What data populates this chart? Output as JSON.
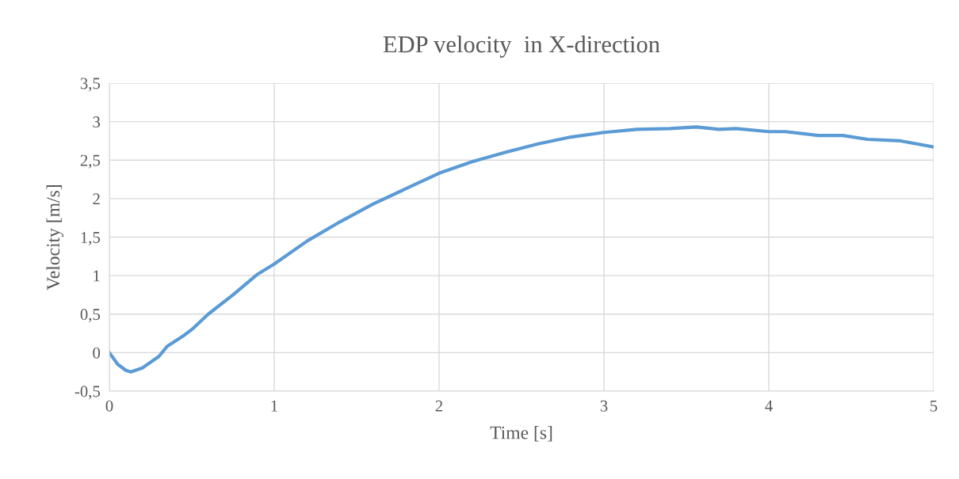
{
  "chart_data": {
    "type": "line",
    "title": "EDP velocity  in X-direction",
    "xlabel": "Time [s]",
    "ylabel": "Velocity [m/s]",
    "x": [
      0,
      0.05,
      0.1,
      0.13,
      0.2,
      0.3,
      0.35,
      0.45,
      0.5,
      0.6,
      0.75,
      0.9,
      1.0,
      1.2,
      1.4,
      1.6,
      1.8,
      2.0,
      2.2,
      2.4,
      2.6,
      2.8,
      3.0,
      3.2,
      3.4,
      3.56,
      3.7,
      3.8,
      4.0,
      4.1,
      4.3,
      4.45,
      4.6,
      4.8,
      5.0
    ],
    "series": [
      {
        "color": "#5b9bd5",
        "values": [
          0,
          -0.15,
          -0.23,
          -0.25,
          -0.2,
          -0.05,
          0.08,
          0.22,
          0.3,
          0.5,
          0.75,
          1.02,
          1.15,
          1.45,
          1.7,
          1.93,
          2.13,
          2.33,
          2.48,
          2.6,
          2.71,
          2.8,
          2.86,
          2.9,
          2.91,
          2.93,
          2.9,
          2.91,
          2.87,
          2.87,
          2.82,
          2.82,
          2.77,
          2.75,
          2.67
        ]
      }
    ],
    "xlim": [
      0,
      5
    ],
    "xticks": [
      0,
      1,
      2,
      3,
      4,
      5
    ],
    "ylim": [
      -0.5,
      3.5
    ],
    "yticks": [
      {
        "value": -0.5,
        "label": "-0,5"
      },
      0,
      {
        "value": 0.5,
        "label": "0,5"
      },
      1,
      {
        "value": 1.5,
        "label": "1,5"
      },
      2,
      {
        "value": 2.5,
        "label": "2,5"
      },
      3,
      {
        "value": 3.5,
        "label": "3,5"
      }
    ],
    "grid": true,
    "marker": "none",
    "line_style": "solid"
  }
}
